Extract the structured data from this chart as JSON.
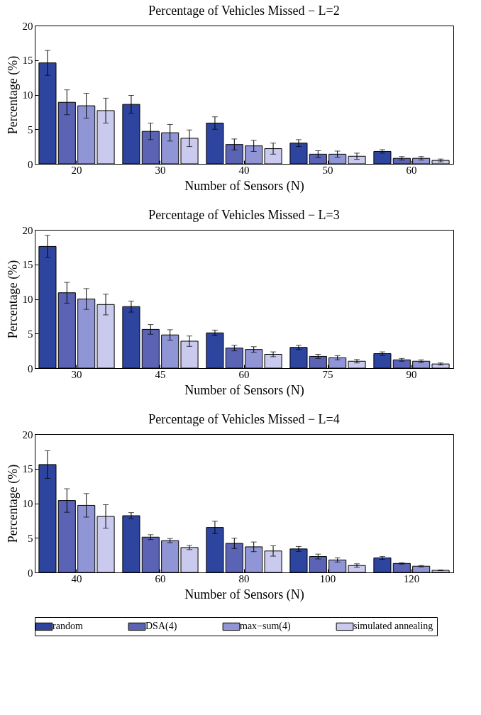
{
  "chart_data": [
    {
      "type": "bar",
      "title": "Percentage of Vehicles Missed − L=2",
      "xlabel": "Number of Sensors (N)",
      "ylabel": "Percentage (%)",
      "categories": [
        "20",
        "30",
        "40",
        "50",
        "60"
      ],
      "ylim": [
        0,
        20
      ],
      "yticks": [
        0,
        5,
        10,
        15,
        20
      ],
      "legend": "bottom",
      "series": [
        {
          "name": "random",
          "color": "#2e45a0",
          "values": [
            14.6,
            8.6,
            5.9,
            3.0,
            1.8
          ],
          "errors": [
            1.8,
            1.3,
            0.9,
            0.5,
            0.25
          ]
        },
        {
          "name": "DSA(4)",
          "color": "#5a63b4",
          "values": [
            8.9,
            4.7,
            2.8,
            1.4,
            0.8
          ],
          "errors": [
            1.8,
            1.2,
            0.8,
            0.5,
            0.25
          ]
        },
        {
          "name": "max−sum(4)",
          "color": "#9095d6",
          "values": [
            8.4,
            4.5,
            2.6,
            1.4,
            0.8
          ],
          "errors": [
            1.8,
            1.2,
            0.8,
            0.45,
            0.25
          ]
        },
        {
          "name": "simulated annealing",
          "color": "#c9caee",
          "values": [
            7.7,
            3.7,
            2.2,
            1.1,
            0.5
          ],
          "errors": [
            1.8,
            1.2,
            0.8,
            0.45,
            0.2
          ]
        }
      ]
    },
    {
      "type": "bar",
      "title": "Percentage of Vehicles Missed − L=3",
      "xlabel": "Number of Sensors (N)",
      "ylabel": "Percentage (%)",
      "categories": [
        "30",
        "45",
        "60",
        "75",
        "90"
      ],
      "ylim": [
        0,
        20
      ],
      "yticks": [
        0,
        5,
        10,
        15,
        20
      ],
      "series": [
        {
          "color": "#2e45a0",
          "values": [
            17.6,
            8.9,
            5.1,
            3.0,
            2.1
          ],
          "errors": [
            1.6,
            0.8,
            0.4,
            0.3,
            0.25
          ]
        },
        {
          "color": "#5a63b4",
          "values": [
            10.9,
            5.6,
            2.9,
            1.7,
            1.2
          ],
          "errors": [
            1.5,
            0.7,
            0.4,
            0.3,
            0.2
          ]
        },
        {
          "color": "#9095d6",
          "values": [
            10.0,
            4.8,
            2.7,
            1.5,
            1.0
          ],
          "errors": [
            1.5,
            0.75,
            0.4,
            0.3,
            0.2
          ]
        },
        {
          "color": "#c9caee",
          "values": [
            9.2,
            3.9,
            2.0,
            1.0,
            0.6
          ],
          "errors": [
            1.5,
            0.75,
            0.35,
            0.25,
            0.15
          ]
        }
      ]
    },
    {
      "type": "bar",
      "title": "Percentage of Vehicles Missed − L=4",
      "xlabel": "Number of Sensors (N)",
      "ylabel": "Percentage (%)",
      "categories": [
        "40",
        "60",
        "80",
        "100",
        "120"
      ],
      "ylim": [
        0,
        20
      ],
      "yticks": [
        0,
        5,
        10,
        15,
        20
      ],
      "series": [
        {
          "color": "#2e45a0",
          "values": [
            15.6,
            8.2,
            6.5,
            3.4,
            2.1
          ],
          "errors": [
            2.0,
            0.45,
            0.9,
            0.35,
            0.2
          ]
        },
        {
          "color": "#5a63b4",
          "values": [
            10.4,
            5.1,
            4.2,
            2.3,
            1.3
          ],
          "errors": [
            1.7,
            0.35,
            0.75,
            0.35,
            0.1
          ]
        },
        {
          "color": "#9095d6",
          "values": [
            9.7,
            4.6,
            3.7,
            1.8,
            0.9
          ],
          "errors": [
            1.7,
            0.3,
            0.7,
            0.3,
            0.1
          ]
        },
        {
          "color": "#c9caee",
          "values": [
            8.1,
            3.6,
            3.1,
            1.0,
            0.3
          ],
          "errors": [
            1.7,
            0.3,
            0.75,
            0.25,
            0.05
          ]
        }
      ]
    }
  ]
}
